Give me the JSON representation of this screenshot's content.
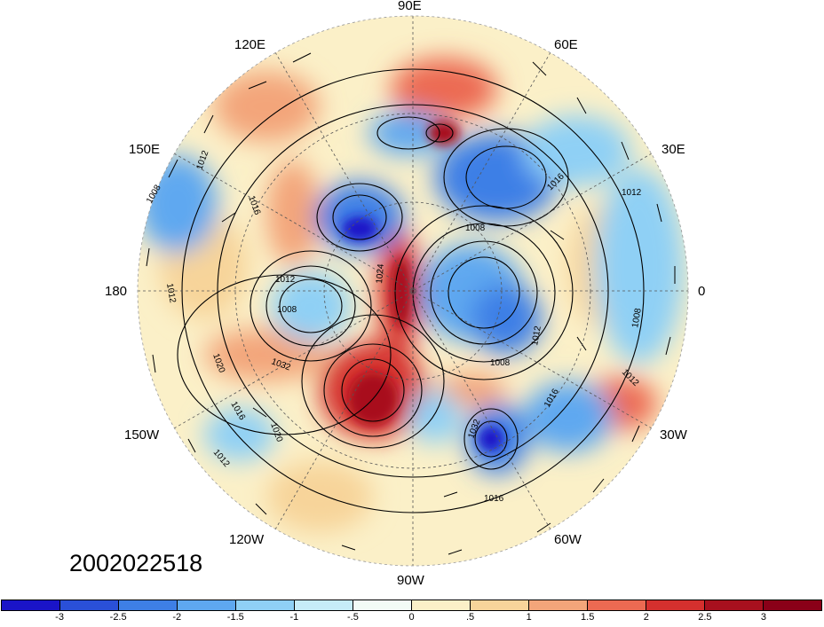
{
  "date_stamp": "2002022518",
  "longitude_labels": {
    "lon_90e": "90E",
    "lon_60e": "60E",
    "lon_120e": "120E",
    "lon_150e": "150E",
    "lon_30e": "30E",
    "lon_180": "180",
    "lon_0": "0",
    "lon_150w": "150W",
    "lon_30w": "30W",
    "lon_120w": "120W",
    "lon_60w": "60W",
    "lon_90w": "90W"
  },
  "contour_labels": [
    "1012",
    "1008",
    "1016",
    "1012",
    "1008",
    "1012",
    "1008",
    "1016",
    "1020",
    "1032",
    "1016",
    "1020",
    "1012",
    "1008",
    "1012",
    "1016",
    "1032",
    "1016",
    "1012",
    "1008",
    "1012",
    "1024"
  ],
  "colorbar": {
    "ticks": [
      "-3",
      "-2.5",
      "-2",
      "-1.5",
      "-1",
      "-.5",
      "0",
      ".5",
      "1",
      "1.5",
      "2",
      "2.5",
      "3"
    ],
    "colors": [
      "#1a14c8",
      "#2a50d8",
      "#3e7fe6",
      "#5ea8f0",
      "#8fd0f5",
      "#c6ecf8",
      "#f2fbf6",
      "#fbf0c8",
      "#f7d49a",
      "#f3a57a",
      "#ec6a52",
      "#d5302e",
      "#a8101e",
      "#8a0018"
    ]
  }
}
